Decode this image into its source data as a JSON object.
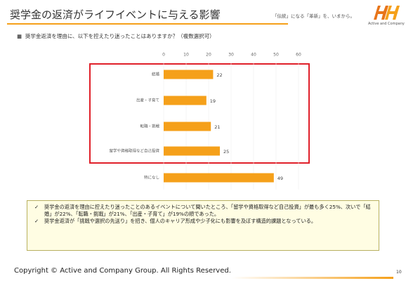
{
  "header": {
    "title": "奨学金の返済がライフイベントに与える影響",
    "tagline": "「伝統」になる「革新」を、いまから。",
    "logo_text": "Active and Company"
  },
  "question": "奨学金返済を理由に、以下を控えたり迷ったことはありますか？（複数選択可）",
  "chart_data": {
    "type": "hbar",
    "categories": [
      "結婚",
      "出産・子育て",
      "転職・挑戦",
      "留学や資格取得など自己投資",
      "特になし"
    ],
    "values": [
      22,
      19,
      21,
      25,
      49
    ],
    "color": "#f5a01a",
    "xlim": [
      0,
      60
    ],
    "xticks": [
      0,
      10,
      20,
      30,
      40,
      50,
      60
    ],
    "grid": true
  },
  "notes": [
    "奨学金の返済を理由に控えたり迷ったことのあるイベントについて聞いたところ、「留学や資格取得など自己投資」が最も多く25%、次いで「結婚」が22%、「転職・挑戦」が21%、「出産・子育て」が19%の順であった。",
    "奨学金返済が「挑戦や選択の先送り」を招き、個人のキャリア形成や少子化にも影響を及ぼす構造的課題となっている。"
  ],
  "footer": {
    "copyright": "Copyright © Active and Company Group. All Rights Reserved.",
    "page": "10"
  }
}
